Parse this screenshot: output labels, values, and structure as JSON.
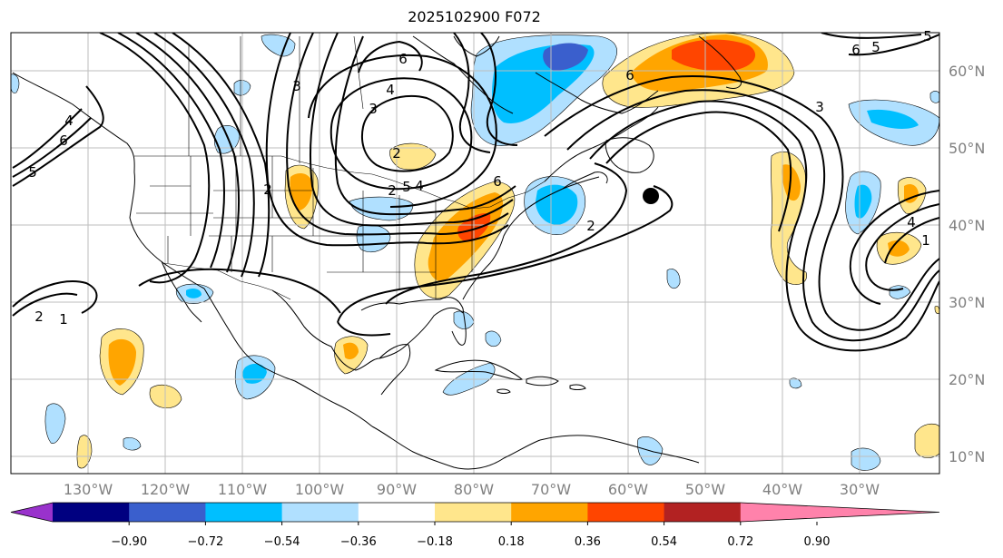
{
  "title": "2025102900 F072",
  "longitude_labels": [
    "130°W",
    "120°W",
    "110°W",
    "100°W",
    "90°W",
    "80°W",
    "70°W",
    "60°W",
    "50°W",
    "40°W",
    "30°W"
  ],
  "latitude_labels": [
    "60°N",
    "50°N",
    "40°N",
    "30°N",
    "20°N",
    "10°N"
  ],
  "colorbar": {
    "tick_labels": [
      "−0.90",
      "−0.72",
      "−0.54",
      "−0.36",
      "−0.18",
      "0.18",
      "0.36",
      "0.54",
      "0.72",
      "0.90"
    ],
    "colors": [
      "#9932cc",
      "#000080",
      "#3a5fcd",
      "#00bfff",
      "#b0e0ff",
      "#ffffff",
      "#ffe68c",
      "#ffa500",
      "#ff4500",
      "#b22222",
      "#ff82ab"
    ]
  },
  "fill_colors": {
    "neg_light": "#b0e0ff",
    "neg_mid": "#00bfff",
    "neg_strong": "#3a5fcd",
    "pos_light": "#ffe68c",
    "pos_mid": "#ffa500",
    "pos_strong": "#ff4500"
  },
  "contour_labels": [
    "6",
    "5",
    "4",
    "5",
    "6",
    "3",
    "4",
    "2",
    "1",
    "2",
    "5",
    "4",
    "2",
    "6",
    "6",
    "5",
    "2",
    "6",
    "1",
    "2",
    "3",
    "4",
    "3"
  ],
  "marker": "storm-position-dot"
}
